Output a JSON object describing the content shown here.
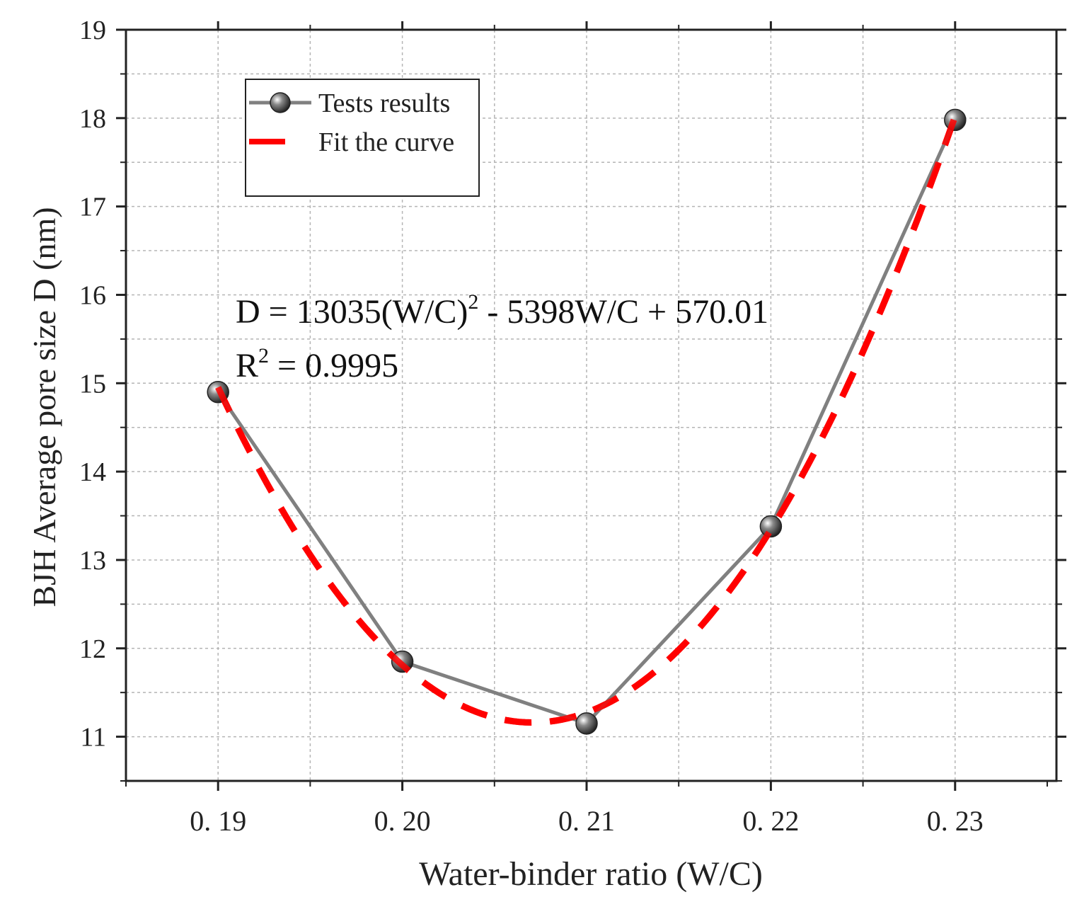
{
  "chart_data": {
    "type": "line",
    "xlabel": "Water-binder ratio (W/C)",
    "ylabel": "BJH Average pore size  D  (nm)",
    "xlim": [
      0.185,
      0.2355
    ],
    "ylim": [
      10.5,
      19
    ],
    "x_ticks": [
      0.19,
      0.2,
      0.21,
      0.22,
      0.23
    ],
    "x_tick_labels": [
      "0. 19",
      "0. 20",
      "0. 21",
      "0. 22",
      "0. 23"
    ],
    "y_ticks": [
      11,
      12,
      13,
      14,
      15,
      16,
      17,
      18,
      19
    ],
    "y_tick_labels": [
      "11",
      "12",
      "13",
      "14",
      "15",
      "16",
      "17",
      "18",
      "19"
    ],
    "grid": true,
    "legend_position": "top-left",
    "series": [
      {
        "name": "Tests results",
        "style": "line-with-markers",
        "color": "#808080",
        "marker_color": "#333333",
        "x": [
          0.19,
          0.2,
          0.21,
          0.22,
          0.23
        ],
        "y": [
          14.9,
          11.85,
          11.15,
          13.38,
          17.98
        ]
      },
      {
        "name": "Fit the curve",
        "style": "dashed",
        "color": "#ff0000",
        "coefficients": {
          "a": 13035,
          "b": -5398,
          "c": 570.01
        },
        "x_range": [
          0.19,
          0.23
        ]
      }
    ],
    "annotations": {
      "equation_part1": "D = 13035(W/C)",
      "equation_sup": "2",
      "equation_part2": " - 5398W/C + 570.01",
      "r2_part1": "R",
      "r2_sup": "2",
      "r2_part2": " = 0.9995"
    }
  }
}
